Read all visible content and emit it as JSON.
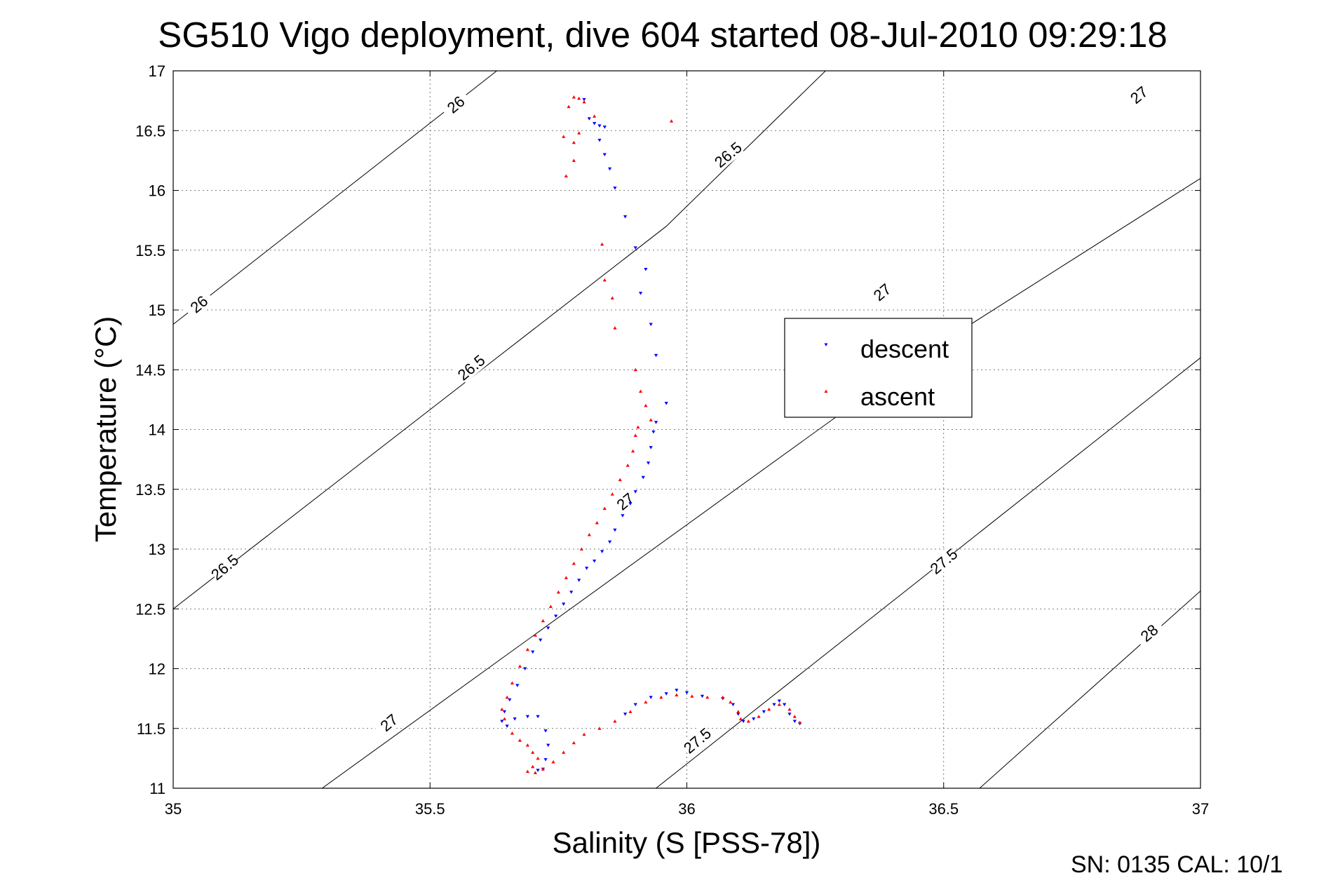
{
  "chart_data": {
    "type": "scatter",
    "title": "SG510 Vigo deployment, dive 604 started 08-Jul-2010 09:29:18",
    "xlabel": "Salinity (S [PSS-78])",
    "ylabel": "Temperature (°C)",
    "xlim": [
      35,
      37
    ],
    "ylim": [
      11,
      17
    ],
    "xticks": [
      35,
      35.5,
      36,
      36.5,
      37
    ],
    "xtick_labels": [
      "35",
      "35.5",
      "36",
      "36.5",
      "37"
    ],
    "yticks": [
      11,
      11.5,
      12,
      12.5,
      13,
      13.5,
      14,
      14.5,
      15,
      15.5,
      16,
      16.5,
      17
    ],
    "ytick_labels": [
      "11",
      "11.5",
      "12",
      "12.5",
      "13",
      "13.5",
      "14",
      "14.5",
      "15",
      "15.5",
      "16",
      "16.5",
      "17"
    ],
    "grid": true,
    "legend_position": "right-center",
    "footer": "SN: 0135  CAL: 10/1",
    "contours": [
      {
        "label": "26",
        "points": [
          [
            35,
            14.88
          ],
          [
            35.63,
            17
          ]
        ],
        "label_positions": [
          [
            35.05,
            15.05
          ],
          [
            35.55,
            16.72
          ]
        ]
      },
      {
        "label": "26.5",
        "points": [
          [
            35,
            12.5
          ],
          [
            35.96,
            15.7
          ],
          [
            36.27,
            17
          ]
        ],
        "label_positions": [
          [
            35.1,
            12.85
          ],
          [
            35.58,
            14.52
          ],
          [
            36.08,
            16.3
          ]
        ]
      },
      {
        "label": "27",
        "points": [
          [
            35.29,
            11
          ],
          [
            36.45,
            14.6
          ],
          [
            37,
            16.1
          ],
          [
            37.43,
            17
          ]
        ],
        "label_positions": [
          [
            35.42,
            11.55
          ],
          [
            35.88,
            13.4
          ],
          [
            36.38,
            15.15
          ],
          [
            36.88,
            16.8
          ]
        ]
      },
      {
        "label": "27.5",
        "points": [
          [
            35.6,
            10
          ],
          [
            35.94,
            11
          ],
          [
            37,
            14.6
          ]
        ],
        "label_positions": [
          [
            36.02,
            11.4
          ],
          [
            36.5,
            12.9
          ]
        ]
      },
      {
        "label": "28",
        "points": [
          [
            36.57,
            11
          ],
          [
            37,
            12.65
          ]
        ],
        "label_positions": [
          [
            36.9,
            12.3
          ]
        ]
      }
    ],
    "series": [
      {
        "name": "descent",
        "color": "#0000ff",
        "marker": "triangle-down",
        "points": [
          [
            35.8,
            16.76
          ],
          [
            35.81,
            16.6
          ],
          [
            35.82,
            16.56
          ],
          [
            35.83,
            16.54
          ],
          [
            35.84,
            16.53
          ],
          [
            35.83,
            16.42
          ],
          [
            35.84,
            16.3
          ],
          [
            35.85,
            16.18
          ],
          [
            35.86,
            16.02
          ],
          [
            35.88,
            15.78
          ],
          [
            35.9,
            15.52
          ],
          [
            35.92,
            15.34
          ],
          [
            35.91,
            15.14
          ],
          [
            35.93,
            14.88
          ],
          [
            35.94,
            14.62
          ],
          [
            35.96,
            14.22
          ],
          [
            35.94,
            14.06
          ],
          [
            35.935,
            13.98
          ],
          [
            35.93,
            13.85
          ],
          [
            35.925,
            13.72
          ],
          [
            35.915,
            13.6
          ],
          [
            35.9,
            13.48
          ],
          [
            35.89,
            13.38
          ],
          [
            35.875,
            13.28
          ],
          [
            35.86,
            13.16
          ],
          [
            35.85,
            13.06
          ],
          [
            35.835,
            12.98
          ],
          [
            35.82,
            12.9
          ],
          [
            35.805,
            12.84
          ],
          [
            35.79,
            12.74
          ],
          [
            35.775,
            12.64
          ],
          [
            35.76,
            12.54
          ],
          [
            35.745,
            12.44
          ],
          [
            35.73,
            12.34
          ],
          [
            35.715,
            12.24
          ],
          [
            35.7,
            12.14
          ],
          [
            35.685,
            12.0
          ],
          [
            35.67,
            11.86
          ],
          [
            35.655,
            11.74
          ],
          [
            35.645,
            11.64
          ],
          [
            35.64,
            11.56
          ],
          [
            35.65,
            11.52
          ],
          [
            35.665,
            11.58
          ],
          [
            35.69,
            11.6
          ],
          [
            35.71,
            11.6
          ],
          [
            35.725,
            11.48
          ],
          [
            35.73,
            11.36
          ],
          [
            35.725,
            11.24
          ],
          [
            35.72,
            11.16
          ],
          [
            35.71,
            11.15
          ],
          [
            35.88,
            11.62
          ],
          [
            35.9,
            11.7
          ],
          [
            35.93,
            11.76
          ],
          [
            35.96,
            11.79
          ],
          [
            35.98,
            11.82
          ],
          [
            36.0,
            11.8
          ],
          [
            36.03,
            11.77
          ],
          [
            36.07,
            11.75
          ],
          [
            36.09,
            11.7
          ],
          [
            36.1,
            11.62
          ],
          [
            36.11,
            11.56
          ],
          [
            36.13,
            11.58
          ],
          [
            36.15,
            11.64
          ],
          [
            36.17,
            11.7
          ],
          [
            36.18,
            11.73
          ],
          [
            36.19,
            11.7
          ],
          [
            36.2,
            11.62
          ],
          [
            36.21,
            11.56
          ],
          [
            36.22,
            11.54
          ]
        ]
      },
      {
        "name": "ascent",
        "color": "#ff0000",
        "marker": "triangle-up",
        "points": [
          [
            35.78,
            16.78
          ],
          [
            35.79,
            16.77
          ],
          [
            35.8,
            16.74
          ],
          [
            35.77,
            16.7
          ],
          [
            35.76,
            16.45
          ],
          [
            35.78,
            16.4
          ],
          [
            35.79,
            16.48
          ],
          [
            35.78,
            16.25
          ],
          [
            35.765,
            16.12
          ],
          [
            35.82,
            16.62
          ],
          [
            35.97,
            16.58
          ],
          [
            35.835,
            15.55
          ],
          [
            35.84,
            15.25
          ],
          [
            35.855,
            15.1
          ],
          [
            35.86,
            14.85
          ],
          [
            35.9,
            14.5
          ],
          [
            35.91,
            14.32
          ],
          [
            35.92,
            14.2
          ],
          [
            35.93,
            14.08
          ],
          [
            35.905,
            14.02
          ],
          [
            35.9,
            13.95
          ],
          [
            35.895,
            13.82
          ],
          [
            35.885,
            13.7
          ],
          [
            35.87,
            13.58
          ],
          [
            35.855,
            13.46
          ],
          [
            35.84,
            13.34
          ],
          [
            35.825,
            13.22
          ],
          [
            35.81,
            13.12
          ],
          [
            35.795,
            13.0
          ],
          [
            35.78,
            12.88
          ],
          [
            35.765,
            12.76
          ],
          [
            35.75,
            12.64
          ],
          [
            35.735,
            12.52
          ],
          [
            35.72,
            12.4
          ],
          [
            35.705,
            12.28
          ],
          [
            35.69,
            12.16
          ],
          [
            35.675,
            12.02
          ],
          [
            35.66,
            11.88
          ],
          [
            35.65,
            11.76
          ],
          [
            35.64,
            11.66
          ],
          [
            35.645,
            11.58
          ],
          [
            35.66,
            11.46
          ],
          [
            35.675,
            11.4
          ],
          [
            35.69,
            11.36
          ],
          [
            35.7,
            11.3
          ],
          [
            35.71,
            11.25
          ],
          [
            35.7,
            11.18
          ],
          [
            35.69,
            11.14
          ],
          [
            35.705,
            11.13
          ],
          [
            35.72,
            11.16
          ],
          [
            35.74,
            11.22
          ],
          [
            35.76,
            11.3
          ],
          [
            35.78,
            11.38
          ],
          [
            35.8,
            11.45
          ],
          [
            35.83,
            11.5
          ],
          [
            35.86,
            11.56
          ],
          [
            35.89,
            11.64
          ],
          [
            35.92,
            11.72
          ],
          [
            35.95,
            11.76
          ],
          [
            35.98,
            11.78
          ],
          [
            36.01,
            11.77
          ],
          [
            36.04,
            11.76
          ],
          [
            36.07,
            11.76
          ],
          [
            36.085,
            11.72
          ],
          [
            36.1,
            11.64
          ],
          [
            36.105,
            11.58
          ],
          [
            36.12,
            11.56
          ],
          [
            36.14,
            11.6
          ],
          [
            36.16,
            11.66
          ],
          [
            36.18,
            11.7
          ],
          [
            36.2,
            11.66
          ],
          [
            36.21,
            11.6
          ],
          [
            36.22,
            11.55
          ]
        ]
      }
    ]
  }
}
